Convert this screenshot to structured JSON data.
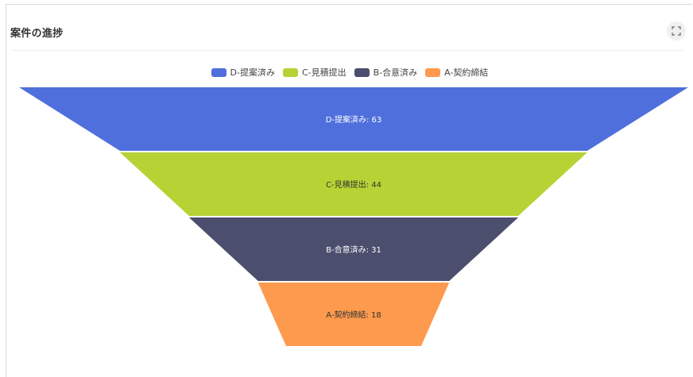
{
  "card": {
    "title": "案件の進捗",
    "expand_icon": "expand-icon"
  },
  "chart_data": {
    "type": "funnel",
    "title": "案件の進捗",
    "legend_position": "top-center",
    "categories": [
      "D-提案済み",
      "C-見積提出",
      "B-合意済み",
      "A-契約締結"
    ],
    "values": [
      63,
      44,
      31,
      18
    ],
    "colors": [
      "#4f6fdc",
      "#b5d334",
      "#4b4e6d",
      "#fd9a4e"
    ],
    "label_colors": [
      "#ffffff",
      "#333333",
      "#ffffff",
      "#333333"
    ],
    "labels": [
      "D-提案済み: 63",
      "C-見積提出: 44",
      "B-合意済み: 31",
      "A-契約締結: 18"
    ]
  }
}
